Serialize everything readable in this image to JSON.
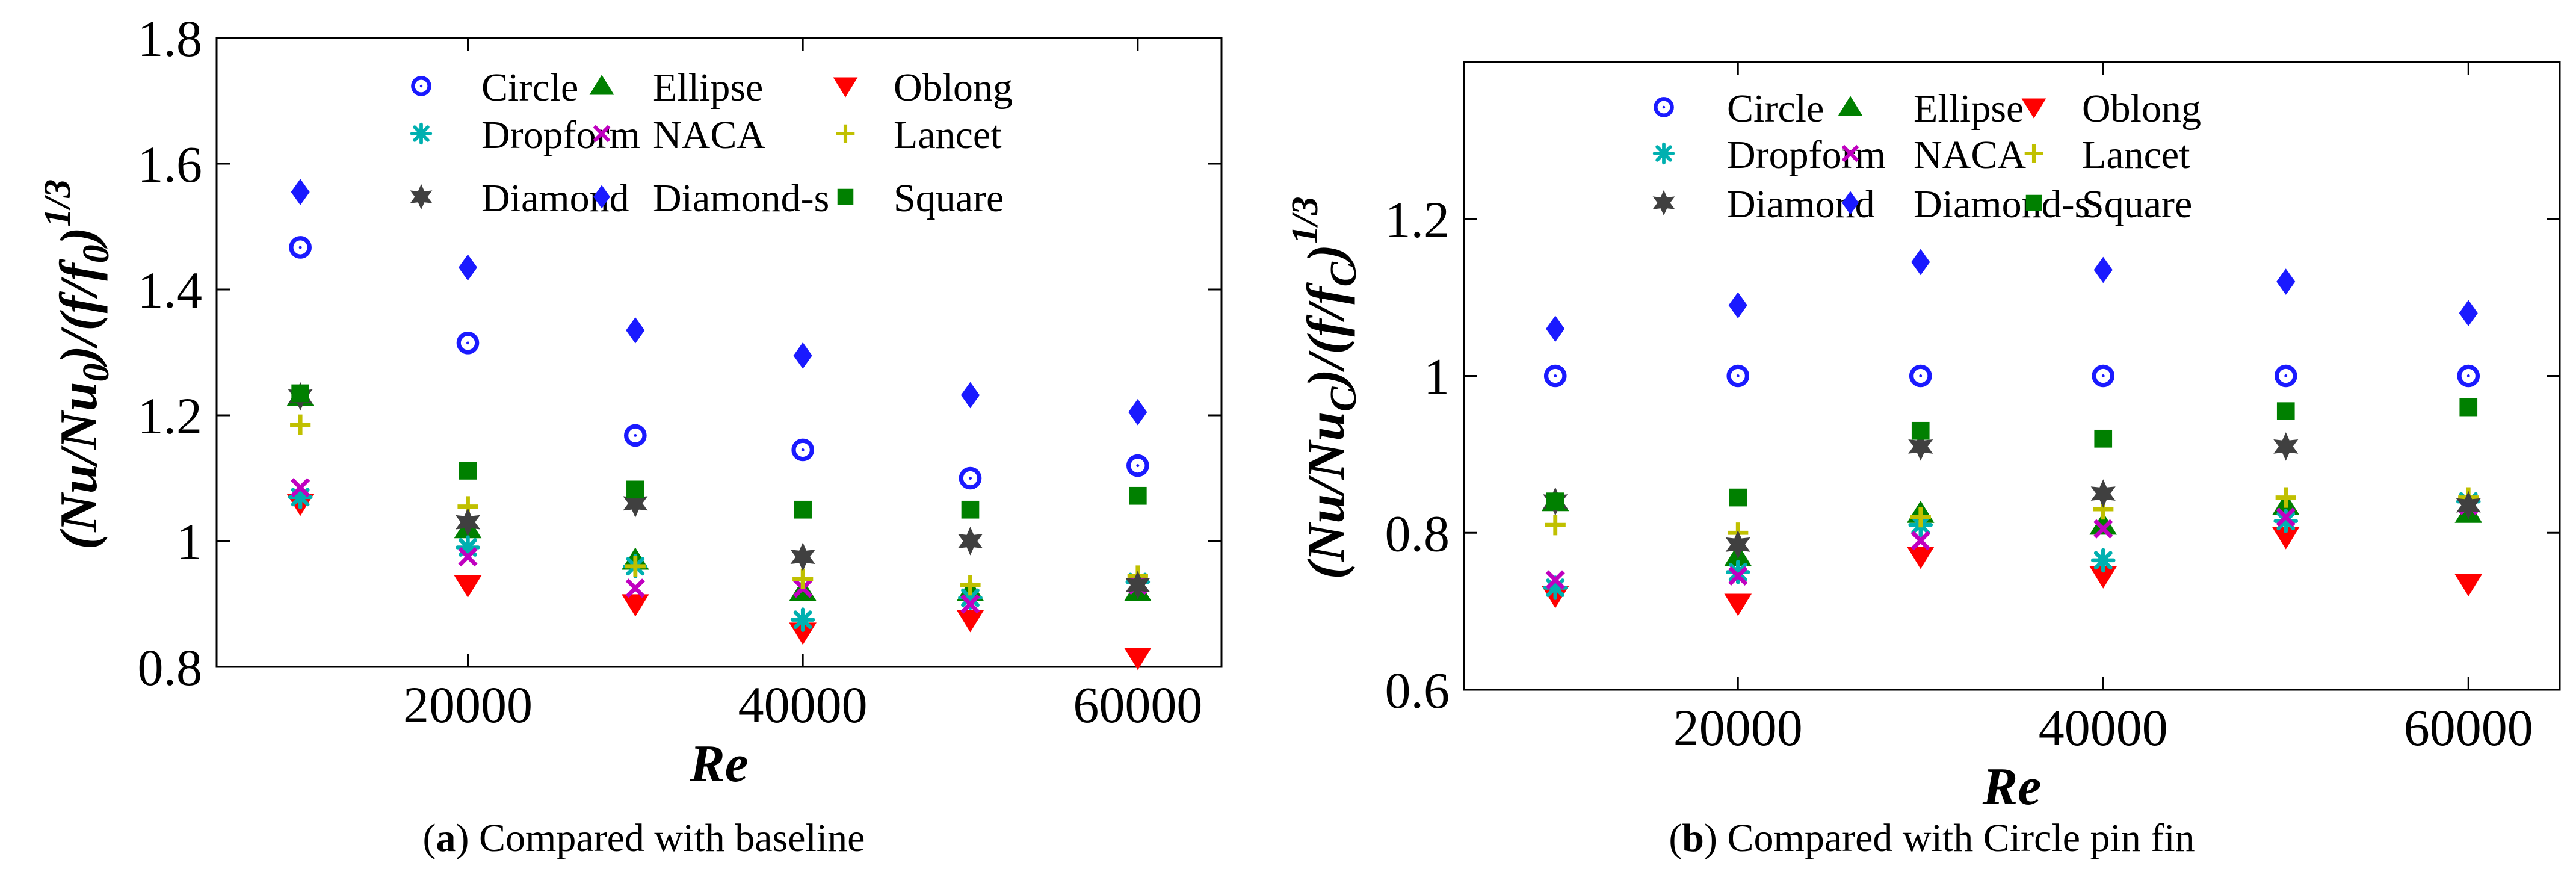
{
  "figure": {
    "caption_a": {
      "letter": "a",
      "text": "Compared with baseline"
    },
    "caption_b": {
      "letter": "b",
      "text": "Compared with Circle pin fin"
    }
  },
  "chart_data": [
    {
      "type": "scatter",
      "panel": "a",
      "title": "",
      "xlabel": "Re",
      "ylabel": "(Nu/Nu0)/(f/f0)^1/3",
      "xlim": [
        5000,
        65000
      ],
      "ylim": [
        0.8,
        1.8
      ],
      "xticks": [
        20000,
        40000,
        60000
      ],
      "yticks": [
        0.8,
        1,
        1.2,
        1.4,
        1.6,
        1.8
      ],
      "ytick_labels": [
        "0.8",
        "1",
        "1.2",
        "1.4",
        "1.6",
        "1.8"
      ],
      "grid": false,
      "legend_position": "top",
      "x": [
        10000,
        20000,
        30000,
        40000,
        50000,
        60000
      ],
      "series": [
        {
          "name": "Circle",
          "marker": "circle",
          "color": "#1a1aff",
          "values": [
            1.467,
            1.315,
            1.168,
            1.145,
            1.1,
            1.12
          ]
        },
        {
          "name": "Ellipse",
          "marker": "triangle-up",
          "color": "#008000",
          "values": [
            1.23,
            1.02,
            0.97,
            0.92,
            0.92,
            0.92
          ]
        },
        {
          "name": "Oblong",
          "marker": "triangle-down",
          "color": "#ff0000",
          "values": [
            1.06,
            0.93,
            0.9,
            0.855,
            0.875,
            0.815
          ]
        },
        {
          "name": "Dropform",
          "marker": "asterisk",
          "color": "#00b0b0",
          "values": [
            1.07,
            0.99,
            0.96,
            0.875,
            0.91,
            0.935
          ]
        },
        {
          "name": "NACA",
          "marker": "x",
          "color": "#c000c0",
          "values": [
            1.085,
            0.975,
            0.925,
            0.925,
            0.9,
            0.93
          ]
        },
        {
          "name": "Lancet",
          "marker": "plus",
          "color": "#c0c000",
          "values": [
            1.185,
            1.055,
            0.96,
            0.94,
            0.93,
            0.945
          ]
        },
        {
          "name": "Diamond",
          "marker": "hexagram",
          "color": "#404040",
          "values": [
            1.23,
            1.03,
            1.06,
            0.975,
            1.0,
            0.93
          ]
        },
        {
          "name": "Diamond-s",
          "marker": "diamond",
          "color": "#1a1aff",
          "values": [
            1.555,
            1.435,
            1.335,
            1.295,
            1.232,
            1.205
          ]
        },
        {
          "name": "Square",
          "marker": "square",
          "color": "#008000",
          "values": [
            1.235,
            1.112,
            1.082,
            1.05,
            1.05,
            1.072
          ]
        }
      ]
    },
    {
      "type": "scatter",
      "panel": "b",
      "title": "",
      "xlabel": "Re",
      "ylabel": "(Nu/NuC)/(f/fC)^1/3",
      "xlim": [
        5000,
        65000
      ],
      "ylim": [
        0.6,
        1.4
      ],
      "xticks": [
        20000,
        40000,
        60000
      ],
      "yticks": [
        0.6,
        0.8,
        1,
        1.2
      ],
      "ytick_labels": [
        "0.6",
        "0.8",
        "1",
        "1.2"
      ],
      "grid": false,
      "legend_position": "top",
      "x": [
        10000,
        20000,
        30000,
        40000,
        50000,
        60000
      ],
      "series": [
        {
          "name": "Circle",
          "marker": "circle",
          "color": "#1a1aff",
          "values": [
            1.0,
            1.0,
            1.0,
            1.0,
            1.0,
            1.0
          ]
        },
        {
          "name": "Ellipse",
          "marker": "triangle-up",
          "color": "#008000",
          "values": [
            0.84,
            0.77,
            0.825,
            0.81,
            0.835,
            0.825
          ]
        },
        {
          "name": "Oblong",
          "marker": "triangle-down",
          "color": "#ff0000",
          "values": [
            0.72,
            0.71,
            0.77,
            0.745,
            0.795,
            0.735
          ]
        },
        {
          "name": "Dropform",
          "marker": "asterisk",
          "color": "#00b0b0",
          "values": [
            0.73,
            0.75,
            0.81,
            0.765,
            0.815,
            0.84
          ]
        },
        {
          "name": "NACA",
          "marker": "x",
          "color": "#c000c0",
          "values": [
            0.74,
            0.745,
            0.79,
            0.805,
            0.82,
            0.835
          ]
        },
        {
          "name": "Lancet",
          "marker": "plus",
          "color": "#c0c000",
          "values": [
            0.81,
            0.8,
            0.82,
            0.83,
            0.845,
            0.845
          ]
        },
        {
          "name": "Diamond",
          "marker": "hexagram",
          "color": "#404040",
          "values": [
            0.84,
            0.785,
            0.91,
            0.85,
            0.91,
            0.835
          ]
        },
        {
          "name": "Diamond-s",
          "marker": "diamond",
          "color": "#1a1aff",
          "values": [
            1.06,
            1.09,
            1.145,
            1.135,
            1.12,
            1.08
          ]
        },
        {
          "name": "Square",
          "marker": "square",
          "color": "#008000",
          "values": [
            0.84,
            0.845,
            0.93,
            0.92,
            0.955,
            0.96
          ]
        }
      ]
    }
  ]
}
